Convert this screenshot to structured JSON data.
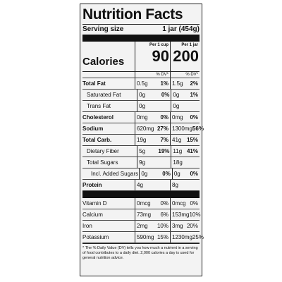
{
  "title": "Nutrition Facts",
  "serving": {
    "label": "Serving size",
    "value": "1 jar (454g)"
  },
  "calories": {
    "label": "Calories",
    "columns": [
      {
        "header": "Per 1 cup",
        "value": "90"
      },
      {
        "header": "Per 1 jar",
        "value": "200"
      }
    ]
  },
  "dv_header": [
    "% DV*",
    "% DV*"
  ],
  "rows": [
    {
      "name": "Total Fat",
      "bold": true,
      "indent": 0,
      "amounts": [
        "0.5g",
        "1.5g"
      ],
      "dv": [
        "1%",
        "2%"
      ]
    },
    {
      "name": "Saturated Fat",
      "bold": false,
      "indent": 1,
      "amounts": [
        "0g",
        "0g"
      ],
      "dv": [
        "0%",
        "1%"
      ]
    },
    {
      "name": "Trans Fat",
      "bold": false,
      "indent": 1,
      "amounts": [
        "0g",
        "0g"
      ]
    },
    {
      "name": "Cholesterol",
      "bold": true,
      "indent": 0,
      "amounts": [
        "0mg",
        "0mg"
      ],
      "dv": [
        "0%",
        "0%"
      ]
    },
    {
      "name": "Sodium",
      "bold": true,
      "indent": 0,
      "amounts": [
        "620mg",
        "1300mg"
      ],
      "dv": [
        "27%",
        "56%"
      ]
    },
    {
      "name": "Total Carb.",
      "bold": true,
      "indent": 0,
      "amounts": [
        "19g",
        "41g"
      ],
      "dv": [
        "7%",
        "15%"
      ]
    },
    {
      "name": "Dietary Fiber",
      "bold": false,
      "indent": 1,
      "amounts": [
        "5g",
        "11g"
      ],
      "dv": [
        "19%",
        "41%"
      ]
    },
    {
      "name": "Total Sugars",
      "bold": false,
      "indent": 1,
      "amounts": [
        "9g",
        "18g"
      ]
    },
    {
      "name": "Incl. Added Sugars",
      "bold": false,
      "indent": 2,
      "amounts": [
        "0g",
        "0g"
      ],
      "dv": [
        "0%",
        "0%"
      ]
    },
    {
      "name": "Protein",
      "bold": true,
      "indent": 0,
      "amounts": [
        "4g",
        "8g"
      ]
    }
  ],
  "vitamins": [
    {
      "name": "Vitamin D",
      "amounts": [
        "0mcg",
        "0mcg"
      ],
      "dv": [
        "0%",
        "0%"
      ]
    },
    {
      "name": "Calcium",
      "amounts": [
        "73mg",
        "153mg"
      ],
      "dv": [
        "6%",
        "10%"
      ]
    },
    {
      "name": "Iron",
      "amounts": [
        "2mg",
        "3mg"
      ],
      "dv": [
        "10%",
        "20%"
      ]
    },
    {
      "name": "Potassium",
      "amounts": [
        "590mg",
        "1230mg"
      ],
      "dv": [
        "15%",
        "25%"
      ]
    }
  ],
  "footnote": "* The % Daily Value (DV) tells you how much a nutrient in a serving of food contributes to a daily diet. 2,000 calories a day is used for general nutrition advice."
}
